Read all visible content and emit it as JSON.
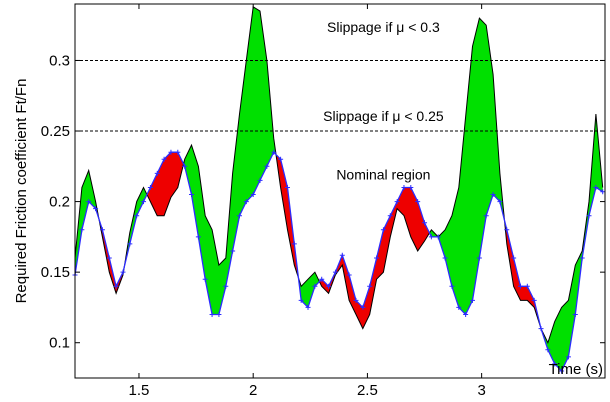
{
  "chart_data": {
    "type": "area",
    "xlabel": "Time (s)",
    "ylabel": "Required Friction coefficient Ft/Fn",
    "xlim": [
      1.22,
      3.54
    ],
    "ylim": [
      0.075,
      0.34
    ],
    "xticks": [
      1.5,
      2,
      2.5,
      3
    ],
    "yticks": [
      0.1,
      0.15,
      0.2,
      0.25,
      0.3
    ],
    "grid": false,
    "thresholds": [
      {
        "y": 0.3,
        "label": "Slippage if μ < 0.3"
      },
      {
        "y": 0.25,
        "label": "Slippage if μ < 0.25"
      }
    ],
    "annotations": [
      {
        "text": "Slippage if μ < 0.3",
        "x": 2.57,
        "y": 0.32
      },
      {
        "text": "Slippage if μ < 0.25",
        "x": 2.57,
        "y": 0.257
      },
      {
        "text": "Nominal region",
        "x": 2.57,
        "y": 0.2155
      }
    ],
    "series": [
      {
        "role": "lower",
        "color": "#2b2bff",
        "x": [
          1.22,
          1.25,
          1.28,
          1.31,
          1.34,
          1.37,
          1.4,
          1.43,
          1.46,
          1.49,
          1.52,
          1.55,
          1.58,
          1.61,
          1.64,
          1.67,
          1.7,
          1.73,
          1.76,
          1.79,
          1.82,
          1.85,
          1.88,
          1.91,
          1.94,
          1.97,
          2.0,
          2.03,
          2.06,
          2.09,
          2.12,
          2.15,
          2.18,
          2.21,
          2.24,
          2.27,
          2.3,
          2.33,
          2.36,
          2.39,
          2.42,
          2.45,
          2.48,
          2.51,
          2.54,
          2.57,
          2.6,
          2.63,
          2.66,
          2.69,
          2.72,
          2.75,
          2.78,
          2.81,
          2.84,
          2.87,
          2.9,
          2.93,
          2.96,
          2.99,
          3.02,
          3.05,
          3.08,
          3.11,
          3.14,
          3.17,
          3.2,
          3.23,
          3.26,
          3.29,
          3.32,
          3.35,
          3.38,
          3.41,
          3.44,
          3.47,
          3.5,
          3.53
        ],
        "y": [
          0.148,
          0.18,
          0.2,
          0.195,
          0.18,
          0.16,
          0.14,
          0.15,
          0.17,
          0.19,
          0.2,
          0.21,
          0.22,
          0.23,
          0.235,
          0.235,
          0.225,
          0.205,
          0.175,
          0.145,
          0.12,
          0.12,
          0.14,
          0.165,
          0.19,
          0.2,
          0.205,
          0.215,
          0.225,
          0.235,
          0.23,
          0.21,
          0.17,
          0.13,
          0.125,
          0.14,
          0.145,
          0.14,
          0.15,
          0.162,
          0.148,
          0.13,
          0.125,
          0.14,
          0.16,
          0.18,
          0.19,
          0.2,
          0.21,
          0.21,
          0.2,
          0.185,
          0.175,
          0.175,
          0.16,
          0.14,
          0.125,
          0.12,
          0.13,
          0.16,
          0.19,
          0.205,
          0.2,
          0.18,
          0.16,
          0.14,
          0.14,
          0.13,
          0.11,
          0.095,
          0.085,
          0.08,
          0.09,
          0.12,
          0.16,
          0.19,
          0.21,
          0.207
        ]
      },
      {
        "role": "upper",
        "color": "#000000",
        "x": [
          1.22,
          1.25,
          1.28,
          1.31,
          1.34,
          1.37,
          1.4,
          1.43,
          1.46,
          1.49,
          1.52,
          1.55,
          1.58,
          1.61,
          1.64,
          1.67,
          1.7,
          1.73,
          1.76,
          1.79,
          1.82,
          1.85,
          1.88,
          1.91,
          1.94,
          1.97,
          2.0,
          2.03,
          2.06,
          2.09,
          2.12,
          2.15,
          2.18,
          2.21,
          2.24,
          2.27,
          2.3,
          2.33,
          2.36,
          2.39,
          2.42,
          2.45,
          2.48,
          2.51,
          2.54,
          2.57,
          2.6,
          2.63,
          2.66,
          2.69,
          2.72,
          2.75,
          2.78,
          2.81,
          2.84,
          2.87,
          2.9,
          2.93,
          2.96,
          2.99,
          3.02,
          3.05,
          3.08,
          3.11,
          3.14,
          3.17,
          3.2,
          3.23,
          3.26,
          3.29,
          3.32,
          3.35,
          3.38,
          3.41,
          3.44,
          3.47,
          3.5,
          3.53
        ],
        "y": [
          0.16,
          0.21,
          0.222,
          0.2,
          0.175,
          0.15,
          0.135,
          0.148,
          0.178,
          0.2,
          0.21,
          0.2,
          0.19,
          0.19,
          0.203,
          0.21,
          0.23,
          0.24,
          0.225,
          0.19,
          0.18,
          0.155,
          0.16,
          0.22,
          0.262,
          0.3,
          0.338,
          0.335,
          0.3,
          0.245,
          0.21,
          0.18,
          0.155,
          0.14,
          0.145,
          0.15,
          0.14,
          0.135,
          0.148,
          0.155,
          0.13,
          0.12,
          0.11,
          0.12,
          0.145,
          0.15,
          0.175,
          0.195,
          0.19,
          0.175,
          0.165,
          0.172,
          0.18,
          0.175,
          0.18,
          0.19,
          0.21,
          0.26,
          0.31,
          0.33,
          0.325,
          0.29,
          0.22,
          0.17,
          0.14,
          0.13,
          0.13,
          0.125,
          0.11,
          0.1,
          0.115,
          0.125,
          0.13,
          0.155,
          0.165,
          0.2,
          0.262,
          0.21
        ]
      }
    ],
    "fill_colors": {
      "positive": "#00e000",
      "negative": "#ee0000"
    }
  }
}
